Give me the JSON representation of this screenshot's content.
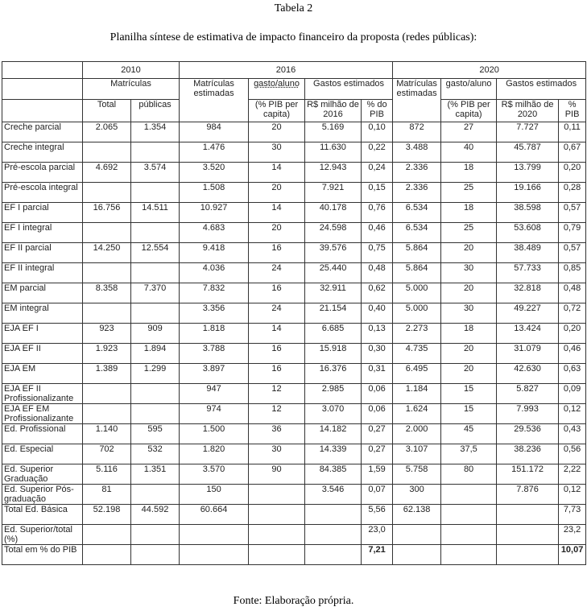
{
  "title": "Tabela 2",
  "subtitle": "Planilha síntese de estimativa de impacto financeiro da proposta (redes públicas):",
  "source": "Fonte: Elaboração própria.",
  "header": {
    "year_2010": "2010",
    "year_2016": "2016",
    "year_2020": "2020",
    "matriculas": "Matrículas",
    "matriculas_estimadas_2016": "Matrículas estimadas",
    "gasto_aluno_2016": "gasto/aluno",
    "gastos_estimados_2016": "Gastos estimados",
    "matriculas_estimadas_2020": "Matrículas estimadas",
    "gasto_aluno_2020": "gasto/aluno",
    "gastos_estimados_2020": "Gastos estimados",
    "total": "Total",
    "publicas": "públicas",
    "pib_per_capita_2016": "(% PIB per capita)",
    "rs_milhao_2016": "R$ milhão de 2016",
    "pct_pib_2016": "% do PIB",
    "pib_per_capita_2020": "(% PIB per capita)",
    "rs_milhao_2020": "R$ milhão de 2020",
    "pct_pib_2020": "% PIB"
  },
  "rows": [
    [
      "Creche parcial",
      "2.065",
      "1.354",
      "984",
      "20",
      "5.169",
      "0,10",
      "872",
      "27",
      "7.727",
      "0,11"
    ],
    [
      "Creche integral",
      "",
      "",
      "1.476",
      "30",
      "11.630",
      "0,22",
      "3.488",
      "40",
      "45.787",
      "0,67"
    ],
    [
      "Pré-escola parcial",
      "4.692",
      "3.574",
      "3.520",
      "14",
      "12.943",
      "0,24",
      "2.336",
      "18",
      "13.799",
      "0,20"
    ],
    [
      "Pré-escola integral",
      "",
      "",
      "1.508",
      "20",
      "7.921",
      "0,15",
      "2.336",
      "25",
      "19.166",
      "0,28"
    ],
    [
      "EF I parcial",
      "16.756",
      "14.511",
      "10.927",
      "14",
      "40.178",
      "0,76",
      "6.534",
      "18",
      "38.598",
      "0,57"
    ],
    [
      "EF I integral",
      "",
      "",
      "4.683",
      "20",
      "24.598",
      "0,46",
      "6.534",
      "25",
      "53.608",
      "0,79"
    ],
    [
      "EF II parcial",
      "14.250",
      "12.554",
      "9.418",
      "16",
      "39.576",
      "0,75",
      "5.864",
      "20",
      "38.489",
      "0,57"
    ],
    [
      "EF II integral",
      "",
      "",
      "4.036",
      "24",
      "25.440",
      "0,48",
      "5.864",
      "30",
      "57.733",
      "0,85"
    ],
    [
      "EM parcial",
      "8.358",
      "7.370",
      "7.832",
      "16",
      "32.911",
      "0,62",
      "5.000",
      "20",
      "32.818",
      "0,48"
    ],
    [
      "EM integral",
      "",
      "",
      "3.356",
      "24",
      "21.154",
      "0,40",
      "5.000",
      "30",
      "49.227",
      "0,72"
    ],
    [
      "EJA EF I",
      "923",
      "909",
      "1.818",
      "14",
      "6.685",
      "0,13",
      "2.273",
      "18",
      "13.424",
      "0,20"
    ],
    [
      "EJA EF II",
      "1.923",
      "1.894",
      "3.788",
      "16",
      "15.918",
      "0,30",
      "4.735",
      "20",
      "31.079",
      "0,46"
    ],
    [
      "EJA EM",
      "1.389",
      "1.299",
      "3.897",
      "16",
      "16.376",
      "0,31",
      "6.495",
      "20",
      "42.630",
      "0,63"
    ],
    [
      "EJA EF II Profissionalizante",
      "",
      "",
      "947",
      "12",
      "2.985",
      "0,06",
      "1.184",
      "15",
      "5.827",
      "0,09"
    ],
    [
      "EJA EF EM Profissionalizante",
      "",
      "",
      "974",
      "12",
      "3.070",
      "0,06",
      "1.624",
      "15",
      "7.993",
      "0,12"
    ],
    [
      "Ed. Profissional",
      "1.140",
      "595",
      "1.500",
      "36",
      "14.182",
      "0,27",
      "2.000",
      "45",
      "29.536",
      "0,43"
    ],
    [
      "Ed. Especial",
      "702",
      "532",
      "1.820",
      "30",
      "14.339",
      "0,27",
      "3.107",
      "37,5",
      "38.236",
      "0,56"
    ],
    [
      "Ed. Superior Graduação",
      "5.116",
      "1.351",
      "3.570",
      "90",
      "84.385",
      "1,59",
      "5.758",
      "80",
      "151.172",
      "2,22"
    ],
    [
      "Ed. Superior Pós-graduação",
      "81",
      "",
      "150",
      "",
      "3.546",
      "0,07",
      "300",
      "",
      "7.876",
      "0,12"
    ],
    [
      "Total Ed. Básica",
      "52.198",
      "44.592",
      "60.664",
      "",
      "",
      "5,56",
      "62.138",
      "",
      "",
      "7,73"
    ],
    [
      "Ed. Superior/total (%)",
      "",
      "",
      "",
      "",
      "",
      "23,0",
      "",
      "",
      "",
      "23,2"
    ],
    [
      "Total em % do PIB",
      "",
      "",
      "",
      "",
      "",
      "7,21",
      "",
      "",
      "",
      "10,07"
    ]
  ],
  "bold_row": "Total em % do PIB"
}
